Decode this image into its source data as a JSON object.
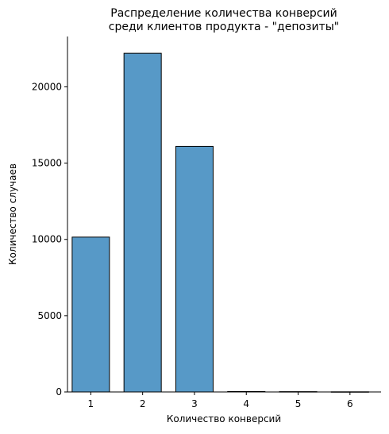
{
  "chart_data": {
    "type": "bar",
    "title_lines": [
      "Распределение количества конверсий",
      "среди клиентов продукта - \"депозиты\""
    ],
    "xlabel": "Количество конверсий",
    "ylabel": "Количество случаев",
    "categories": [
      "1",
      "2",
      "3",
      "4",
      "5",
      "6"
    ],
    "x": [
      1,
      2,
      3,
      4,
      5,
      6
    ],
    "values": [
      10150,
      22200,
      16100,
      30,
      20,
      10
    ],
    "xlim": [
      0.55,
      6.6
    ],
    "ylim": [
      0,
      23300
    ],
    "yticks": [
      0,
      5000,
      10000,
      15000,
      20000
    ],
    "ytick_labels": [
      "0",
      "5000",
      "10000",
      "15000",
      "20000"
    ],
    "grid": false,
    "bar_color": "#5799c7",
    "edge_color": "#000000"
  }
}
